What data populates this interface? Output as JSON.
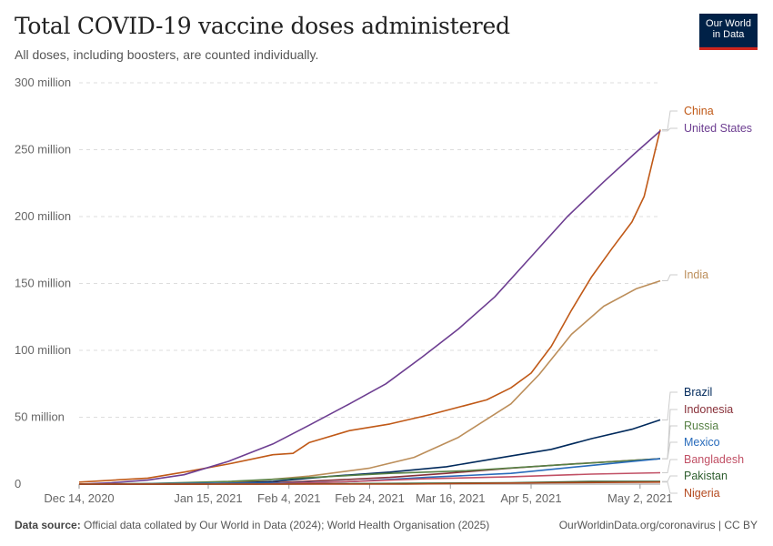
{
  "header": {
    "title": "Total COVID-19 vaccine doses administered",
    "subtitle": "All doses, including boosters, are counted individually.",
    "logo_line1": "Our World",
    "logo_line2": "in Data"
  },
  "footer": {
    "source_label": "Data source:",
    "source_text": "Official data collated by Our World in Data (2024); World Health Organisation (2025)",
    "url_text": "OurWorldinData.org/coronavirus | CC BY"
  },
  "chart_data": {
    "type": "line",
    "title": "Total COVID-19 vaccine doses administered",
    "subtitle": "All doses, including boosters, are counted individually.",
    "x_ticks": [
      "Dec 14, 2020",
      "Jan 15, 2021",
      "Feb 4, 2021",
      "Feb 24, 2021",
      "Mar 16, 2021",
      "Apr 5, 2021",
      "May 2, 2021"
    ],
    "x_tick_dates": [
      "2020-12-14",
      "2021-01-15",
      "2021-02-04",
      "2021-02-24",
      "2021-03-16",
      "2021-04-05",
      "2021-05-02"
    ],
    "xlim": [
      "2020-12-14",
      "2021-05-07"
    ],
    "y_ticks": [
      "0",
      "50 million",
      "100 million",
      "150 million",
      "200 million",
      "250 million",
      "300 million"
    ],
    "ylim": [
      0,
      300
    ],
    "y_unit": "million",
    "grid": "horizontal dashed",
    "legend": "right, labels at line ends",
    "series": [
      {
        "name": "China",
        "color": "#C05917",
        "points": [
          [
            "2020-12-14",
            1.5
          ],
          [
            "2020-12-31",
            4.5
          ],
          [
            "2021-01-09",
            9
          ],
          [
            "2021-01-20",
            15
          ],
          [
            "2021-01-31",
            22
          ],
          [
            "2021-02-05",
            23
          ],
          [
            "2021-02-09",
            31
          ],
          [
            "2021-02-19",
            40
          ],
          [
            "2021-03-01",
            45
          ],
          [
            "2021-03-11",
            52
          ],
          [
            "2021-03-25",
            63
          ],
          [
            "2021-03-31",
            72
          ],
          [
            "2021-04-05",
            83
          ],
          [
            "2021-04-10",
            103
          ],
          [
            "2021-04-15",
            130
          ],
          [
            "2021-04-20",
            155
          ],
          [
            "2021-04-25",
            176
          ],
          [
            "2021-04-30",
            196
          ],
          [
            "2021-05-03",
            215
          ],
          [
            "2021-05-05",
            240
          ],
          [
            "2021-05-07",
            265
          ]
        ]
      },
      {
        "name": "United States",
        "color": "#6D3E91",
        "points": [
          [
            "2020-12-14",
            0
          ],
          [
            "2020-12-22",
            1
          ],
          [
            "2020-12-31",
            3
          ],
          [
            "2021-01-09",
            7
          ],
          [
            "2021-01-20",
            17
          ],
          [
            "2021-01-31",
            30
          ],
          [
            "2021-02-09",
            44
          ],
          [
            "2021-02-19",
            60
          ],
          [
            "2021-02-28",
            75
          ],
          [
            "2021-03-09",
            95
          ],
          [
            "2021-03-18",
            116
          ],
          [
            "2021-03-27",
            140
          ],
          [
            "2021-04-05",
            170
          ],
          [
            "2021-04-14",
            200
          ],
          [
            "2021-04-23",
            226
          ],
          [
            "2021-05-01",
            248
          ],
          [
            "2021-05-07",
            264
          ]
        ]
      },
      {
        "name": "India",
        "color": "#BC8E5A",
        "points": [
          [
            "2020-12-14",
            0
          ],
          [
            "2021-01-15",
            0.2
          ],
          [
            "2021-01-25",
            2
          ],
          [
            "2021-02-09",
            6
          ],
          [
            "2021-02-24",
            12
          ],
          [
            "2021-03-07",
            20
          ],
          [
            "2021-03-18",
            35
          ],
          [
            "2021-03-31",
            60
          ],
          [
            "2021-04-07",
            82
          ],
          [
            "2021-04-15",
            112
          ],
          [
            "2021-04-23",
            133
          ],
          [
            "2021-05-01",
            146
          ],
          [
            "2021-05-07",
            152
          ]
        ]
      },
      {
        "name": "Brazil",
        "color": "#00295B",
        "points": [
          [
            "2020-12-14",
            0
          ],
          [
            "2021-01-17",
            0.2
          ],
          [
            "2021-01-31",
            2
          ],
          [
            "2021-02-15",
            6
          ],
          [
            "2021-03-01",
            9
          ],
          [
            "2021-03-15",
            13
          ],
          [
            "2021-03-31",
            21
          ],
          [
            "2021-04-10",
            26
          ],
          [
            "2021-04-20",
            34
          ],
          [
            "2021-04-30",
            41
          ],
          [
            "2021-05-07",
            48
          ]
        ]
      },
      {
        "name": "Indonesia",
        "color": "#883039",
        "points": [
          [
            "2020-12-14",
            0
          ],
          [
            "2021-01-13",
            0
          ],
          [
            "2021-01-31",
            1
          ],
          [
            "2021-02-15",
            3
          ],
          [
            "2021-03-01",
            5
          ],
          [
            "2021-03-15",
            8
          ],
          [
            "2021-03-31",
            12
          ],
          [
            "2021-04-15",
            15
          ],
          [
            "2021-05-07",
            19
          ]
        ]
      },
      {
        "name": "Russia",
        "color": "#578145",
        "points": [
          [
            "2020-12-14",
            0
          ],
          [
            "2021-01-01",
            0.5
          ],
          [
            "2021-01-20",
            2
          ],
          [
            "2021-02-10",
            5
          ],
          [
            "2021-03-01",
            8
          ],
          [
            "2021-03-20",
            10
          ],
          [
            "2021-04-10",
            14
          ],
          [
            "2021-05-07",
            19
          ]
        ]
      },
      {
        "name": "Mexico",
        "color": "#286BBB",
        "points": [
          [
            "2020-12-14",
            0
          ],
          [
            "2020-12-24",
            0.1
          ],
          [
            "2021-01-15",
            0.6
          ],
          [
            "2021-02-04",
            0.8
          ],
          [
            "2021-02-20",
            2
          ],
          [
            "2021-03-10",
            5
          ],
          [
            "2021-03-31",
            8
          ],
          [
            "2021-04-20",
            14
          ],
          [
            "2021-05-07",
            19
          ]
        ]
      },
      {
        "name": "Bangladesh",
        "color": "#C15065",
        "points": [
          [
            "2020-12-14",
            0
          ],
          [
            "2021-01-27",
            0
          ],
          [
            "2021-02-10",
            1
          ],
          [
            "2021-02-20",
            2
          ],
          [
            "2021-03-10",
            4
          ],
          [
            "2021-03-31",
            5.5
          ],
          [
            "2021-04-20",
            7.5
          ],
          [
            "2021-05-07",
            8.5
          ]
        ]
      },
      {
        "name": "Pakistan",
        "color": "#2E5E2E",
        "points": [
          [
            "2020-12-14",
            0
          ],
          [
            "2021-02-02",
            0
          ],
          [
            "2021-03-01",
            0.5
          ],
          [
            "2021-03-31",
            1
          ],
          [
            "2021-04-20",
            2
          ],
          [
            "2021-05-07",
            2
          ]
        ]
      },
      {
        "name": "Nigeria",
        "color": "#B4491E",
        "points": [
          [
            "2020-12-14",
            0
          ],
          [
            "2021-03-05",
            0
          ],
          [
            "2021-03-20",
            0.5
          ],
          [
            "2021-04-10",
            1
          ],
          [
            "2021-05-07",
            1.5
          ]
        ]
      }
    ]
  }
}
